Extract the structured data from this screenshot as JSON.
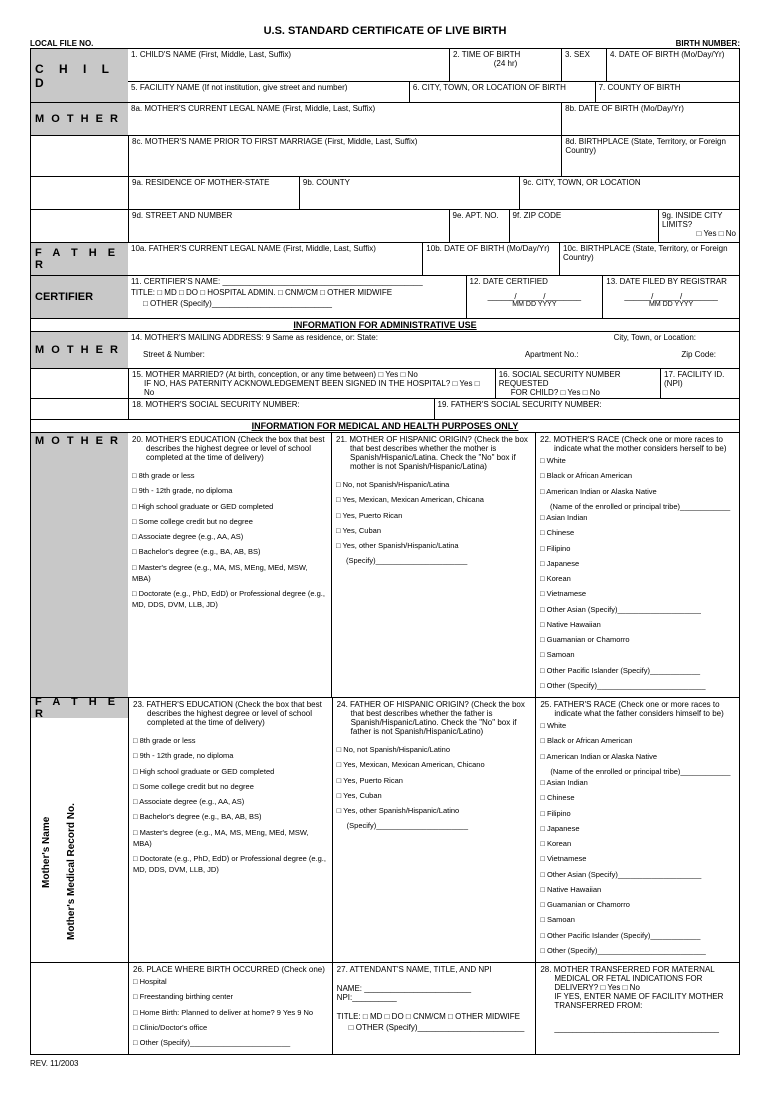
{
  "title": "U.S. STANDARD CERTIFICATE OF LIVE BIRTH",
  "top_left": "LOCAL FILE NO.",
  "top_right": "BIRTH NUMBER:",
  "rev": "REV. 11/2003",
  "sections": {
    "child": "C H I L D",
    "mother": "M O T H E R",
    "father": "F A T H E R",
    "certifier": "CERTIFIER"
  },
  "fields": {
    "f1": "1. CHILD'S NAME (First, Middle, Last, Suffix)",
    "f2": "2. TIME OF BIRTH",
    "f2b": "(24 hr)",
    "f3": "3. SEX",
    "f4": "4. DATE OF BIRTH (Mo/Day/Yr)",
    "f5": "5. FACILITY NAME (If not institution, give street and number)",
    "f6": "6. CITY, TOWN, OR LOCATION OF BIRTH",
    "f7": "7. COUNTY OF BIRTH",
    "f8a": "8a. MOTHER'S CURRENT LEGAL NAME (First, Middle, Last, Suffix)",
    "f8b": "8b. DATE OF BIRTH (Mo/Day/Yr)",
    "f8c": "8c. MOTHER'S NAME PRIOR TO FIRST MARRIAGE (First, Middle, Last, Suffix)",
    "f8d": "8d. BIRTHPLACE (State, Territory, or Foreign Country)",
    "f9a": "9a. RESIDENCE OF MOTHER-STATE",
    "f9b": "9b. COUNTY",
    "f9c": "9c. CITY, TOWN, OR LOCATION",
    "f9d": "9d. STREET AND NUMBER",
    "f9e": "9e. APT. NO.",
    "f9f": "9f. ZIP CODE",
    "f9g": "9g. INSIDE CITY LIMITS?",
    "f9g_opt": "□ Yes □ No",
    "f10a": "10a. FATHER'S CURRENT LEGAL NAME (First, Middle, Last, Suffix)",
    "f10b": "10b. DATE OF BIRTH (Mo/Day/Yr)",
    "f10c": "10c. BIRTHPLACE (State, Territory, or Foreign Country)",
    "f11": "11. CERTIFIER'S NAME:",
    "f11_title": "TITLE: □ MD   □ DO   □ HOSPITAL ADMIN.   □ CNM/CM   □ OTHER MIDWIFE",
    "f11_other": "□  OTHER (Specify)___________________________",
    "f12": "12. DATE CERTIFIED",
    "f13": "13. DATE FILED BY REGISTRAR",
    "dateslash": "______/______/________",
    "datelbls": "MM      DD       YYYY",
    "banner1": "INFORMATION FOR ADMINISTRATIVE USE",
    "f14": "14. MOTHER'S MAILING ADDRESS:    9 Same as residence, or:      State:",
    "f14b": "City, Town, or Location:",
    "f14c": "Street & Number:",
    "f14d": "Apartment No.:",
    "f14e": "Zip Code:",
    "f15": "15. MOTHER MARRIED? (At birth, conception, or any time between)                          □ Yes    □ No",
    "f15b": "IF NO, HAS PATERNITY ACKNOWLEDGEMENT BEEN SIGNED IN THE HOSPITAL?  □ Yes    □ No",
    "f16": "16. SOCIAL SECURITY NUMBER REQUESTED",
    "f16b": "FOR CHILD?      □ Yes    □ No",
    "f17": "17. FACILITY ID. (NPI)",
    "f18": "18. MOTHER'S SOCIAL SECURITY NUMBER:",
    "f19": "19. FATHER'S SOCIAL SECURITY NUMBER:",
    "banner2": "INFORMATION FOR MEDICAL AND HEALTH PURPOSES ONLY",
    "f20": "20. MOTHER'S EDUCATION (Check the box that best describes the highest degree or level of school completed at the time of delivery)",
    "f21": "21. MOTHER OF HISPANIC ORIGIN? (Check the box that best describes whether the mother is Spanish/Hispanic/Latina. Check the \"No\" box if mother is not Spanish/Hispanic/Latina)",
    "f22": "22. MOTHER'S RACE (Check one or more races to indicate what the mother considers herself to be)",
    "f23": "23. FATHER'S EDUCATION (Check the box that best describes the highest degree or level of school completed at the time of delivery)",
    "f24": "24. FATHER OF HISPANIC ORIGIN? (Check the box that best describes whether the father is Spanish/Hispanic/Latino. Check the \"No\" box if father is not Spanish/Hispanic/Latino)",
    "f25": "25. FATHER'S RACE (Check one or more races to indicate what the father considers himself to be)",
    "f26": "26. PLACE WHERE BIRTH OCCURRED (Check one)",
    "f27": "27. ATTENDANT'S NAME, TITLE, AND NPI",
    "f27b": "NAME: ________________________  NPI:__________",
    "f27c": "TITLE:  □ MD  □ DO  □ CNM/CM  □ OTHER MIDWIFE",
    "f27d": "□  OTHER (Specify)________________________",
    "f28": "28. MOTHER TRANSFERRED FOR MATERNAL MEDICAL OR FETAL INDICATIONS FOR DELIVERY?  □ Yes  □ No",
    "f28b": "IF YES, ENTER NAME OF FACILITY MOTHER TRANSFERRED FROM:",
    "f28c": "_____________________________________"
  },
  "edu_opts": [
    "8th grade or less",
    "9th - 12th grade, no diploma",
    "High school graduate or GED completed",
    "Some college credit but no degree",
    "Associate degree (e.g., AA, AS)",
    "Bachelor's degree (e.g., BA, AB, BS)",
    "Master's degree (e.g., MA, MS, MEng, MEd, MSW, MBA)",
    "Doctorate (e.g., PhD, EdD) or Professional degree (e.g., MD, DDS, DVM, LLB, JD)"
  ],
  "hisp_m": [
    "No, not Spanish/Hispanic/Latina",
    "Yes, Mexican, Mexican American, Chicana",
    "Yes, Puerto Rican",
    "Yes, Cuban",
    "Yes, other Spanish/Hispanic/Latina"
  ],
  "hisp_f": [
    "No, not Spanish/Hispanic/Latino",
    "Yes, Mexican, Mexican American, Chicano",
    "Yes, Puerto Rican",
    "Yes, Cuban",
    "Yes, other Spanish/Hispanic/Latino"
  ],
  "hisp_spec": "(Specify)______________________",
  "race_opts": [
    "White",
    "Black or African American",
    "American Indian or Alaska Native",
    "(Name of the enrolled or principal tribe)____________",
    "Asian Indian",
    "Chinese",
    "Filipino",
    "Japanese",
    "Korean",
    "Vietnamese",
    "Other Asian (Specify)____________________",
    "Native Hawaiian",
    "Guamanian or Chamorro",
    "Samoan",
    "Other Pacific Islander (Specify)____________",
    "Other (Specify)__________________________"
  ],
  "place_opts": [
    "Hospital",
    "Freestanding birthing center",
    "Home Birth: Planned to deliver at home? 9 Yes  9 No",
    "Clinic/Doctor's office",
    "Other (Specify)________________________"
  ],
  "side1": "Mother's Name",
  "side2": "Mother's Medical Record No."
}
